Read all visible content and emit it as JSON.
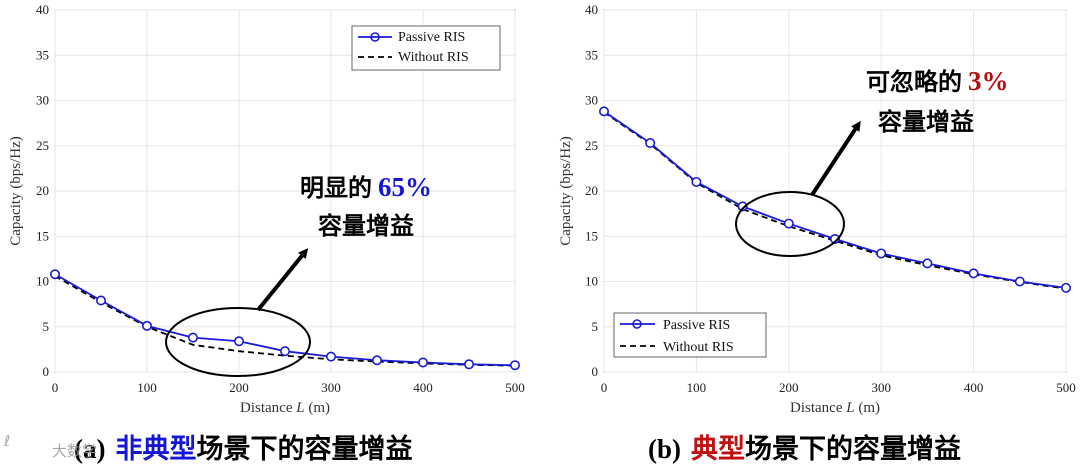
{
  "chart_data": [
    {
      "type": "line",
      "panel": "a",
      "x": [
        0,
        50,
        100,
        150,
        200,
        250,
        300,
        350,
        400,
        450,
        500
      ],
      "series": [
        {
          "name": "Passive RIS",
          "style": "solid-circle",
          "color": "#1a1ad9",
          "values": [
            10.8,
            7.9,
            5.1,
            3.8,
            3.4,
            2.3,
            1.7,
            1.3,
            1.05,
            0.85,
            0.75
          ]
        },
        {
          "name": "Without RIS",
          "style": "dashed",
          "color": "#000000",
          "values": [
            10.6,
            7.7,
            5.0,
            3.0,
            2.3,
            1.8,
            1.4,
            1.15,
            0.95,
            0.8,
            0.7
          ]
        }
      ],
      "xlim": [
        0,
        500
      ],
      "ylim": [
        0,
        40
      ],
      "xticks": [
        0,
        100,
        200,
        300,
        400,
        500
      ],
      "yticks": [
        0,
        5,
        10,
        15,
        20,
        25,
        30,
        35,
        40
      ],
      "xlabel": "Distance L (m)",
      "ylabel": "Capacity (bps/Hz)",
      "legend": "top-right",
      "annotation": {
        "prefix": "明显的",
        "value": "65%",
        "value_color": "#1616d6",
        "suffix": "容量增益"
      },
      "caption": {
        "label": "(a)",
        "highlight": "非典型",
        "highlight_color": "#1616d6",
        "rest": "场景下的容量增益"
      }
    },
    {
      "type": "line",
      "panel": "b",
      "x": [
        0,
        50,
        100,
        150,
        200,
        250,
        300,
        350,
        400,
        450,
        500
      ],
      "series": [
        {
          "name": "Passive RIS",
          "style": "solid-circle",
          "color": "#1a1ad9",
          "values": [
            28.8,
            25.3,
            21.0,
            18.3,
            16.4,
            14.7,
            13.1,
            12.0,
            10.9,
            10.0,
            9.3
          ]
        },
        {
          "name": "Without RIS",
          "style": "dashed",
          "color": "#000000",
          "values": [
            28.7,
            25.2,
            20.9,
            18.0,
            16.1,
            14.5,
            12.9,
            11.8,
            10.8,
            9.95,
            9.2
          ]
        }
      ],
      "xlim": [
        0,
        500
      ],
      "ylim": [
        0,
        40
      ],
      "xticks": [
        0,
        100,
        200,
        300,
        400,
        500
      ],
      "yticks": [
        0,
        5,
        10,
        15,
        20,
        25,
        30,
        35,
        40
      ],
      "xlabel": "Distance L (m)",
      "ylabel": "Capacity (bps/Hz)",
      "legend": "bottom-left",
      "annotation": {
        "prefix": "可忽略的",
        "value": "3%",
        "value_color": "#b01010",
        "suffix": "容量增益"
      },
      "caption": {
        "label": "(b)",
        "highlight": "典型",
        "highlight_color": "#c01010",
        "rest": "场景下的容量增益"
      }
    }
  ],
  "watermark": "大数学"
}
